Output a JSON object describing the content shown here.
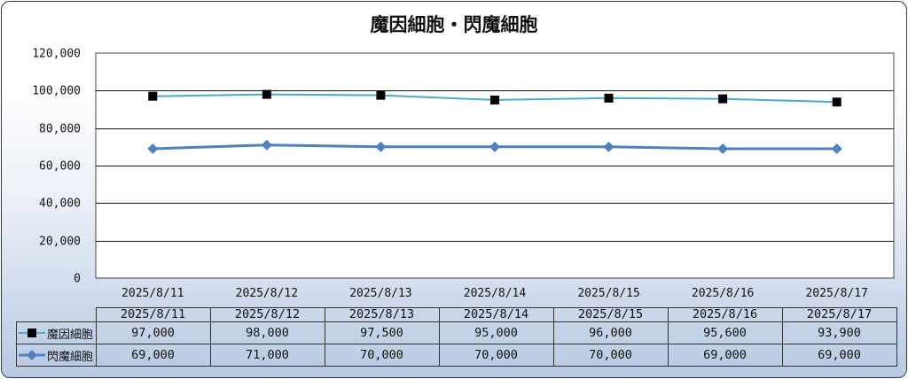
{
  "colors": {
    "series_1": "#4bacc6",
    "series_1_marker": "#000000",
    "series_2": "#4f81bd"
  },
  "chart_data": {
    "type": "line",
    "title": "魔因細胞・閃魔細胞",
    "categories": [
      "2025/8/11",
      "2025/8/12",
      "2025/8/13",
      "2025/8/14",
      "2025/8/15",
      "2025/8/16",
      "2025/8/17"
    ],
    "series": [
      {
        "name": "魔因細胞",
        "marker": "square",
        "values": [
          97000,
          98000,
          97500,
          95000,
          96000,
          95600,
          93900
        ]
      },
      {
        "name": "閃魔細胞",
        "marker": "diamond",
        "values": [
          69000,
          71000,
          70000,
          70000,
          70000,
          69000,
          69000
        ]
      }
    ],
    "ylim": [
      0,
      120000
    ],
    "yticks": [
      0,
      20000,
      40000,
      60000,
      80000,
      100000,
      120000
    ],
    "ytick_labels": [
      "0",
      "20,000",
      "40,000",
      "60,000",
      "80,000",
      "100,000",
      "120,000"
    ],
    "grid": true,
    "legend": "data-table",
    "data_table": {
      "rows": [
        {
          "series": "魔因細胞",
          "cells": [
            "97,000",
            "98,000",
            "97,500",
            "95,000",
            "96,000",
            "95,600",
            "93,900"
          ]
        },
        {
          "series": "閃魔細胞",
          "cells": [
            "69,000",
            "71,000",
            "70,000",
            "70,000",
            "70,000",
            "69,000",
            "69,000"
          ]
        }
      ]
    }
  }
}
